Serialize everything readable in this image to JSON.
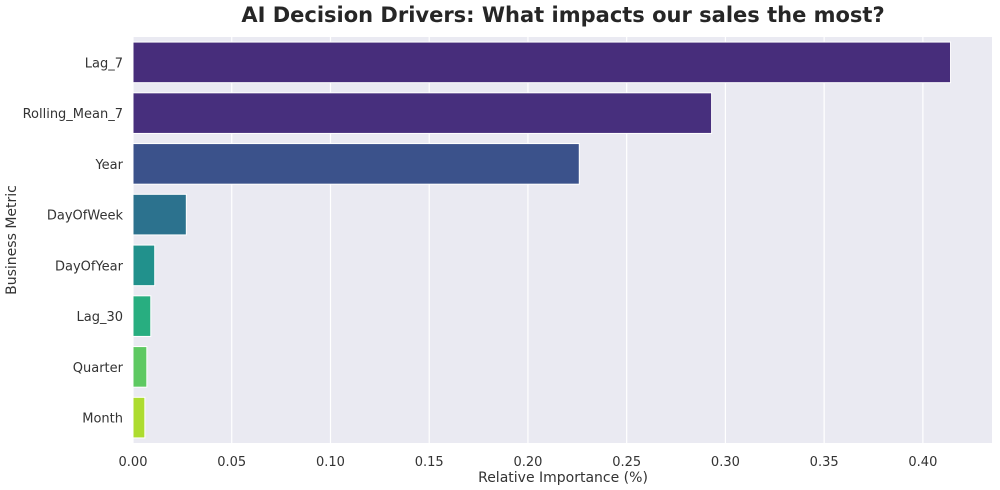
{
  "chart_data": {
    "type": "bar",
    "orientation": "horizontal",
    "title": "AI Decision Drivers: What impacts our sales the most?",
    "xlabel": "Relative Importance (%)",
    "ylabel": "Business Metric",
    "xlim": [
      0,
      0.435
    ],
    "grid": true,
    "categories": [
      "Lag_7",
      "Rolling_Mean_7",
      "Year",
      "DayOfWeek",
      "DayOfYear",
      "Lag_30",
      "Quarter",
      "Month"
    ],
    "values": [
      0.414,
      0.293,
      0.226,
      0.027,
      0.011,
      0.009,
      0.007,
      0.006
    ],
    "colors": [
      "#472d7b",
      "#472f7d",
      "#3b528b",
      "#2c728e",
      "#21918c",
      "#28ae80",
      "#5ec962",
      "#addc30"
    ],
    "xticks": [
      "0.00",
      "0.05",
      "0.10",
      "0.15",
      "0.20",
      "0.25",
      "0.30",
      "0.35",
      "0.40"
    ],
    "background_color": "#eaeaf2"
  }
}
